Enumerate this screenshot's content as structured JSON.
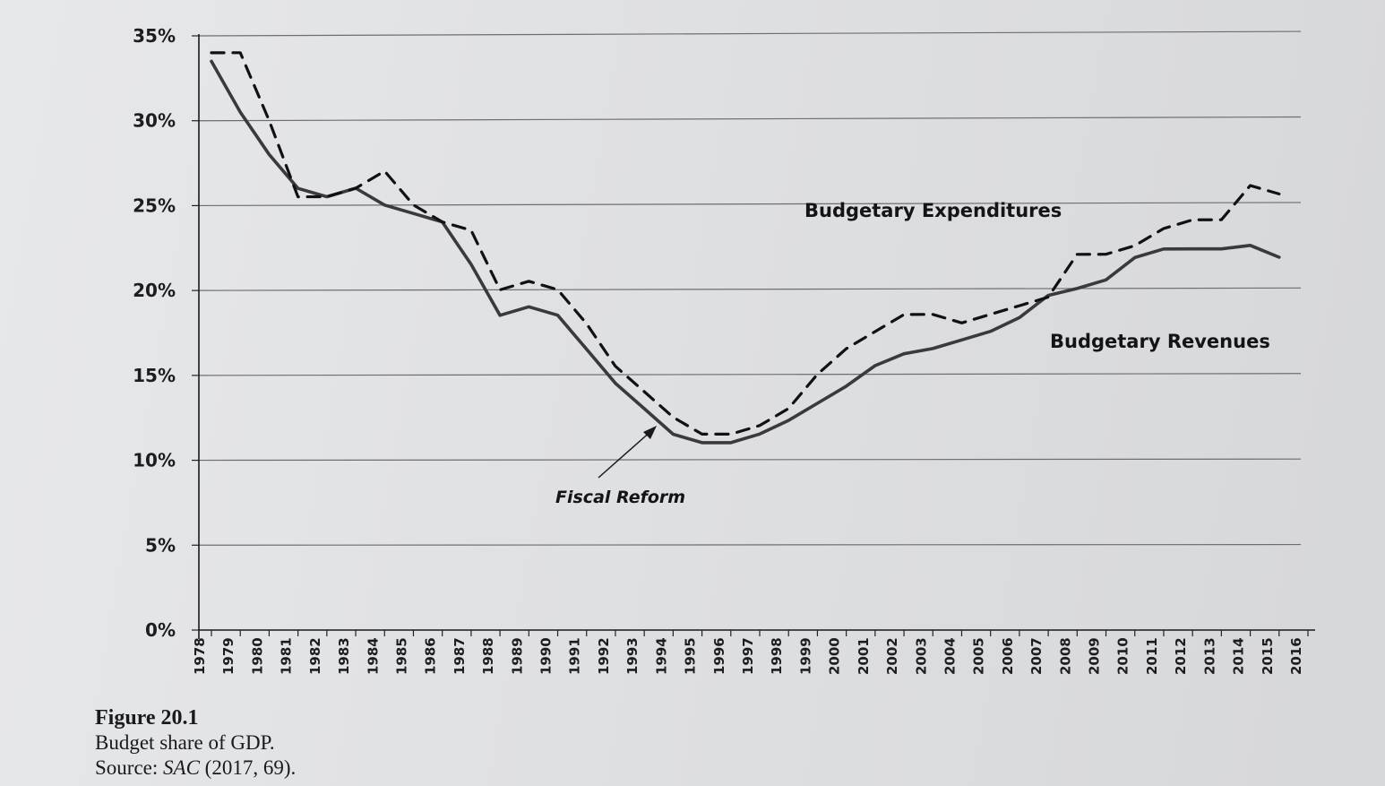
{
  "figure": {
    "number": "Figure 20.1",
    "caption": "Budget share of GDP.",
    "source_prefix": "Source: ",
    "source_title": "SAC",
    "source_suffix": " (2017, 69)."
  },
  "chart_data": {
    "type": "line",
    "title": "",
    "xlabel": "",
    "ylabel": "",
    "ylim": [
      0,
      35
    ],
    "yticks": [
      "0%",
      "5%",
      "10%",
      "15%",
      "20%",
      "25%",
      "30%",
      "35%"
    ],
    "ytick_values": [
      0,
      5,
      10,
      15,
      20,
      25,
      30,
      35
    ],
    "grid": true,
    "x": [
      1978,
      1979,
      1980,
      1981,
      1982,
      1983,
      1984,
      1985,
      1986,
      1987,
      1988,
      1989,
      1990,
      1991,
      1992,
      1993,
      1994,
      1995,
      1996,
      1997,
      1998,
      1999,
      2000,
      2001,
      2002,
      2003,
      2004,
      2005,
      2006,
      2007,
      2008,
      2009,
      2010,
      2011,
      2012,
      2013,
      2014,
      2015,
      2016
    ],
    "series": [
      {
        "name": "Budgetary Revenues",
        "style": "solid",
        "color": "#3a3a3c",
        "values": [
          33.5,
          30.5,
          28.0,
          26.0,
          25.5,
          26.0,
          25.0,
          24.5,
          24.0,
          21.5,
          18.5,
          19.0,
          18.5,
          16.5,
          14.5,
          13.0,
          11.5,
          11.0,
          11.0,
          11.5,
          12.3,
          13.3,
          14.3,
          15.5,
          16.2,
          16.5,
          17.0,
          17.5,
          18.3,
          19.6,
          20.0,
          20.5,
          21.8,
          22.3,
          22.3,
          22.3,
          22.5,
          21.8,
          null
        ]
      },
      {
        "name": "Budgetary Expenditures",
        "style": "dashed",
        "color": "#111113",
        "values": [
          34.0,
          34.0,
          30.0,
          25.5,
          25.5,
          26.0,
          27.0,
          25.0,
          24.0,
          23.5,
          20.0,
          20.5,
          20.0,
          18.0,
          15.5,
          14.0,
          12.5,
          11.5,
          11.5,
          12.0,
          13.0,
          15.0,
          16.5,
          17.5,
          18.5,
          18.5,
          18.0,
          18.5,
          19.0,
          19.5,
          22.0,
          22.0,
          22.5,
          23.5,
          24.0,
          24.0,
          26.0,
          25.5,
          null
        ]
      }
    ],
    "annotations": [
      {
        "text": "Fiscal Reform",
        "points_to": {
          "x": 1994,
          "y": 11.5
        }
      }
    ]
  }
}
